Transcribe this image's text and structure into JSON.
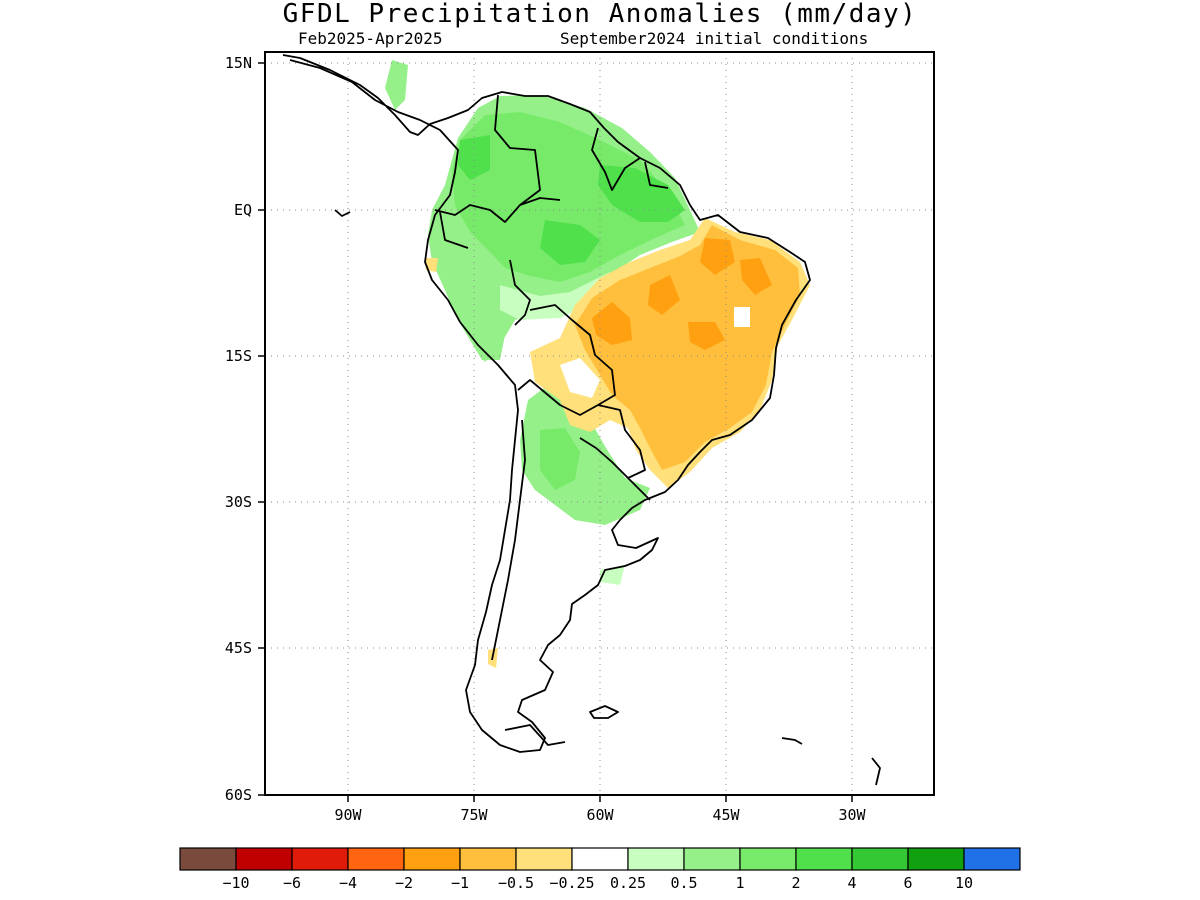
{
  "title": "GFDL Precipitation Anomalies (mm/day)",
  "period": "Feb2025-Apr2025",
  "init": "September2024 initial conditions",
  "lat_labels": [
    "15N",
    "EQ",
    "15S",
    "30S",
    "45S",
    "60S"
  ],
  "lon_labels": [
    "90W",
    "75W",
    "60W",
    "45W",
    "30W"
  ],
  "colorbar": {
    "colors": [
      "#7a4a3d",
      "#c00000",
      "#e01b0a",
      "#ff6410",
      "#ffa010",
      "#ffbf3c",
      "#ffe07a",
      "#ffffff",
      "#c8ffc0",
      "#96f08a",
      "#78ea6a",
      "#4fe04c",
      "#34c834",
      "#10a010",
      "#2070e8"
    ],
    "labels": [
      "-10",
      "-6",
      "-4",
      "-2",
      "-1",
      "-0.5",
      "-0.25",
      "0.25",
      "0.5",
      "1",
      "2",
      "4",
      "6",
      "10"
    ]
  },
  "colors": {
    "dry_strong": "#ffa010",
    "dry": "#ffbf3c",
    "dry_weak": "#ffe07a",
    "wet_weak": "#c8ffc0",
    "wet": "#96f08a",
    "wet_mid": "#78ea6a",
    "wet_strong": "#4fe04c"
  }
}
